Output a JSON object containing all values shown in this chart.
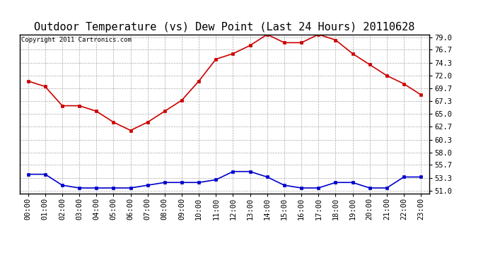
{
  "title": "Outdoor Temperature (vs) Dew Point (Last 24 Hours) 20110628",
  "copyright": "Copyright 2011 Cartronics.com",
  "hours": [
    "00:00",
    "01:00",
    "02:00",
    "03:00",
    "04:00",
    "05:00",
    "06:00",
    "07:00",
    "08:00",
    "09:00",
    "10:00",
    "11:00",
    "12:00",
    "13:00",
    "14:00",
    "15:00",
    "16:00",
    "17:00",
    "18:00",
    "19:00",
    "20:00",
    "21:00",
    "22:00",
    "23:00"
  ],
  "temp": [
    71.0,
    70.0,
    66.5,
    66.5,
    65.5,
    63.5,
    62.0,
    63.5,
    65.5,
    67.5,
    71.0,
    75.0,
    76.0,
    77.5,
    79.5,
    78.0,
    78.0,
    79.5,
    78.5,
    76.0,
    74.0,
    72.0,
    70.5,
    68.5
  ],
  "dew": [
    54.0,
    54.0,
    52.0,
    51.5,
    51.5,
    51.5,
    51.5,
    52.0,
    52.5,
    52.5,
    52.5,
    53.0,
    54.5,
    54.5,
    53.5,
    52.0,
    51.5,
    51.5,
    52.5,
    52.5,
    51.5,
    51.5,
    53.5,
    53.5
  ],
  "temp_color": "#cc0000",
  "dew_color": "#0000cc",
  "bg_color": "#ffffff",
  "plot_bg": "#ffffff",
  "grid_color": "#aaaaaa",
  "yticks": [
    51.0,
    53.3,
    55.7,
    58.0,
    60.3,
    62.7,
    65.0,
    67.3,
    69.7,
    72.0,
    74.3,
    76.7,
    79.0
  ],
  "ymin": 50.5,
  "ymax": 79.5,
  "title_fontsize": 11,
  "copyright_fontsize": 6.5,
  "tick_fontsize": 7.5
}
